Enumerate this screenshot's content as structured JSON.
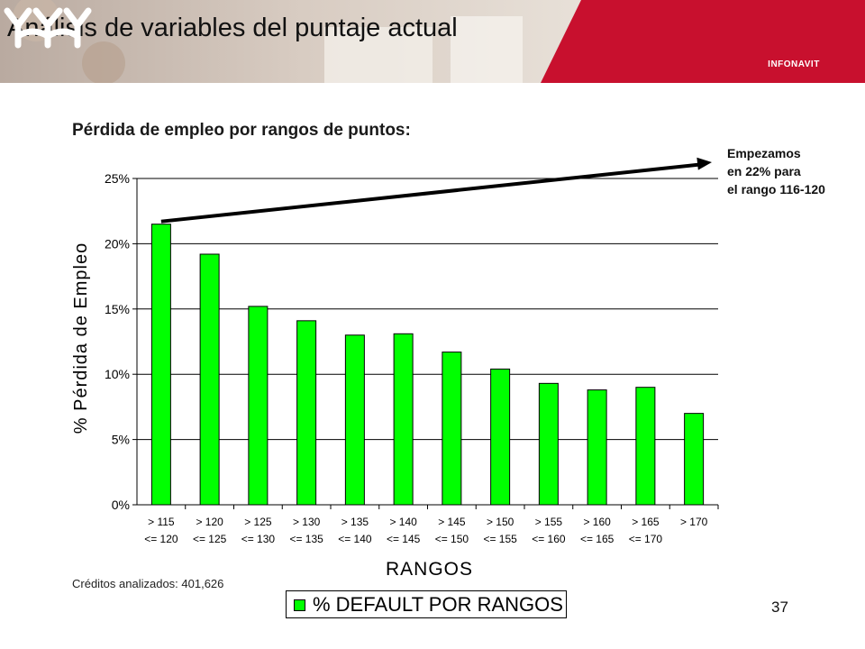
{
  "slide": {
    "title": "Análisis de variables del puntaje actual",
    "subtitle": "Pérdida de empleo por rangos de puntos:",
    "logo_text": "INFONAVIT",
    "annotation": [
      "Empezamos",
      "en 22% para",
      "el rango 116-120"
    ],
    "footnote": "Créditos analizados: 401,626",
    "page_number": "37"
  },
  "colors": {
    "bar": "#00ff00",
    "header_red": "#c8102e",
    "gridline": "#000000"
  },
  "chart_data": {
    "type": "bar",
    "title": "",
    "xlabel": "RANGOS",
    "ylabel": "% Pérdida de Empleo",
    "ylim": [
      0,
      25
    ],
    "y_ticks": [
      "0%",
      "5%",
      "10%",
      "15%",
      "20%",
      "25%"
    ],
    "grid": true,
    "legend_position": "bottom",
    "categories": [
      [
        "> 115",
        "<= 120"
      ],
      [
        "> 120",
        "<= 125"
      ],
      [
        "> 125",
        "<= 130"
      ],
      [
        "> 130",
        "<= 135"
      ],
      [
        "> 135",
        "<= 140"
      ],
      [
        "> 140",
        "<= 145"
      ],
      [
        "> 145",
        "<= 150"
      ],
      [
        "> 150",
        "<= 155"
      ],
      [
        "> 155",
        "<= 160"
      ],
      [
        "> 160",
        "<= 165"
      ],
      [
        "> 165",
        "<= 170"
      ],
      [
        "> 170",
        ""
      ]
    ],
    "series": [
      {
        "name": "% DEFAULT POR RANGOS",
        "values": [
          21.5,
          19.2,
          15.2,
          14.1,
          13.0,
          13.1,
          11.7,
          10.4,
          9.3,
          8.8,
          9.0,
          7.0
        ]
      }
    ]
  }
}
